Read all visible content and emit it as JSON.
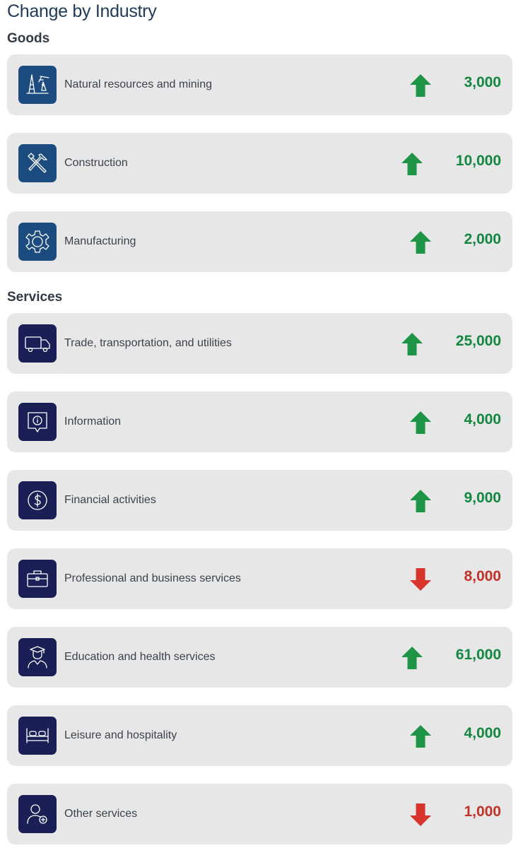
{
  "title": "Change by Industry",
  "colors": {
    "up": "#138740",
    "down": "#c23226",
    "arrow_up": "#1e9447",
    "arrow_down": "#d9342b",
    "goods_icon_bg": "#1c4b7f",
    "services_icon_bg": "#1a1f56"
  },
  "goods": {
    "heading": "Goods",
    "items": [
      {
        "label": "Natural resources and mining",
        "value": "3,000",
        "direction": "up",
        "icon": "mining-icon"
      },
      {
        "label": "Construction",
        "value": "10,000",
        "direction": "up",
        "icon": "tools-icon"
      },
      {
        "label": "Manufacturing",
        "value": "2,000",
        "direction": "up",
        "icon": "gear-icon"
      }
    ]
  },
  "services": {
    "heading": "Services",
    "items": [
      {
        "label": "Trade, transportation, and utilities",
        "value": "25,000",
        "direction": "up",
        "icon": "truck-icon"
      },
      {
        "label": "Information",
        "value": "4,000",
        "direction": "up",
        "icon": "info-icon"
      },
      {
        "label": "Financial activities",
        "value": "9,000",
        "direction": "up",
        "icon": "dollar-icon"
      },
      {
        "label": "Professional and business services",
        "value": "8,000",
        "direction": "down",
        "icon": "briefcase-icon"
      },
      {
        "label": "Education and health services",
        "value": "61,000",
        "direction": "up",
        "icon": "graduate-icon"
      },
      {
        "label": "Leisure and hospitality",
        "value": "4,000",
        "direction": "up",
        "icon": "bed-icon"
      },
      {
        "label": "Other services",
        "value": "1,000",
        "direction": "down",
        "icon": "person-plus-icon"
      }
    ]
  }
}
